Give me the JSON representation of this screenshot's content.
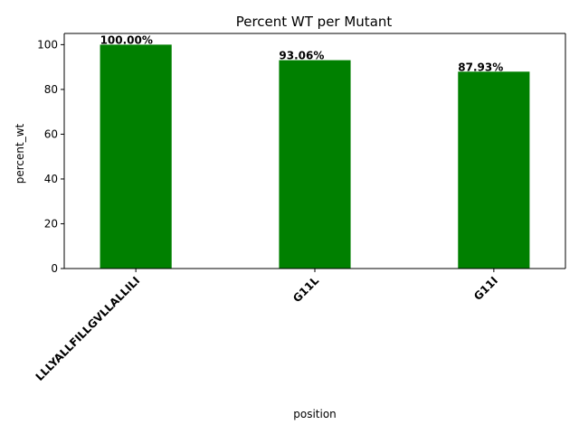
{
  "chart_data": {
    "type": "bar",
    "title": "Percent WT per Mutant",
    "xlabel": "position",
    "ylabel": "percent_wt",
    "categories": [
      "LLLYALLFILLGVLLALLILI",
      "G11L",
      "G11I"
    ],
    "values": [
      100.0,
      93.06,
      87.93
    ],
    "data_labels": [
      "100.00%",
      "93.06%",
      "87.93%"
    ],
    "ylim": [
      0,
      105
    ],
    "yticks": [
      0,
      20,
      40,
      60,
      80,
      100
    ],
    "bar_color": "#008000",
    "grid": false,
    "legend": "none"
  }
}
